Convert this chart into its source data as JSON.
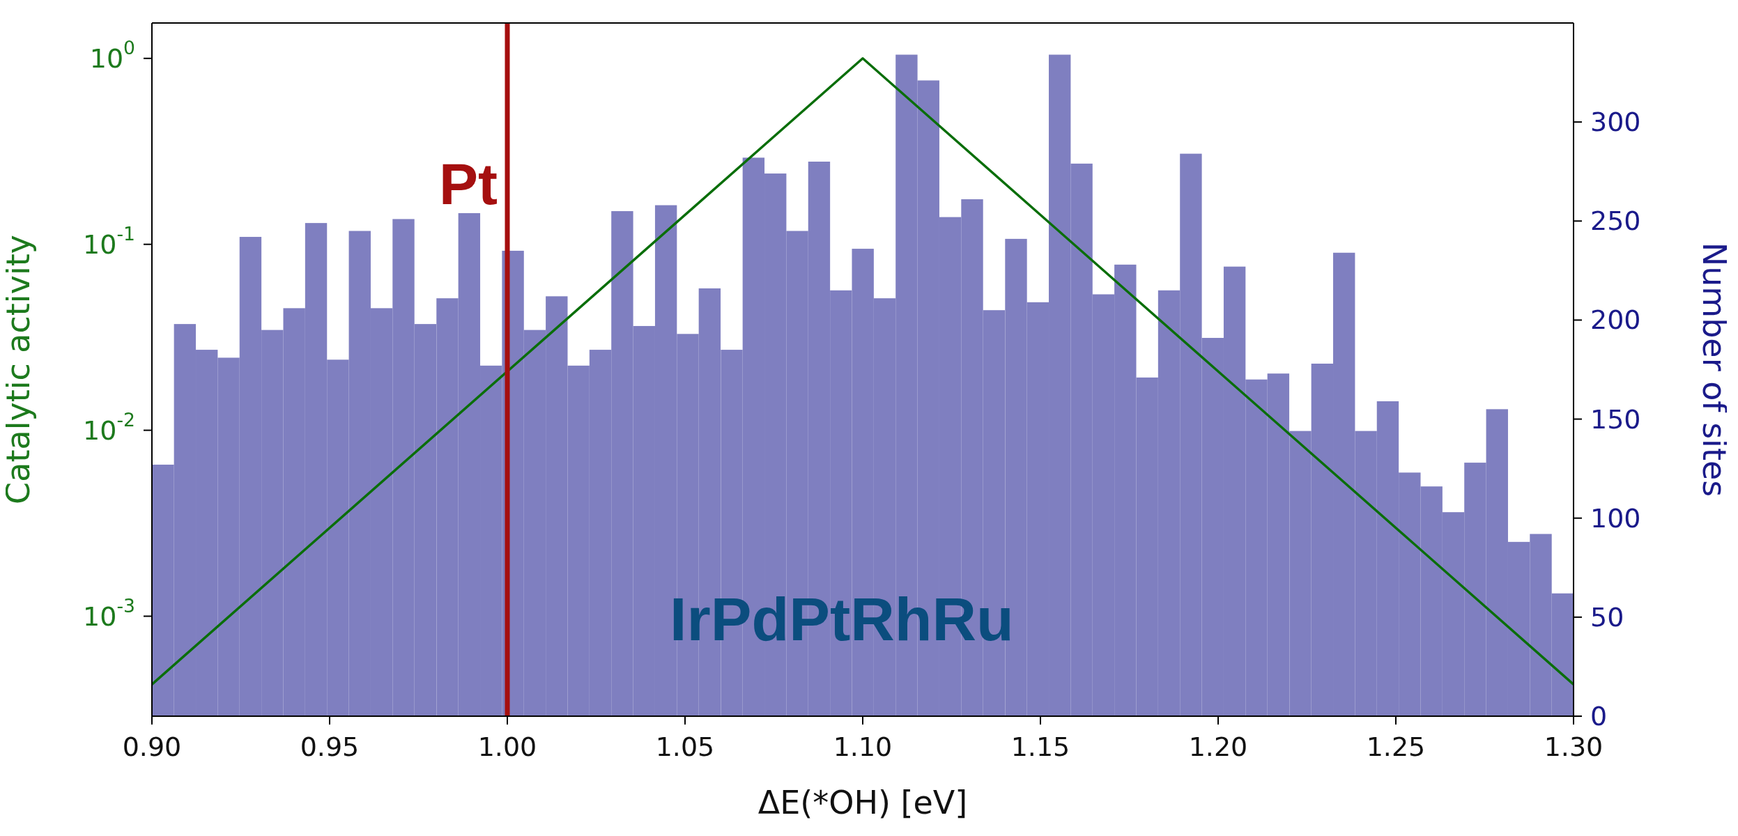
{
  "chart_data": {
    "type": "histogram",
    "xlabel": "ΔE(*OH) [eV]",
    "ylabel": "Catalytic activity",
    "y2label": "Number of sites",
    "log": "y",
    "xlim": [
      0.9,
      1.3
    ],
    "xticks": [
      {
        "value": 0.9,
        "label": "0.90"
      },
      {
        "value": 0.95,
        "label": "0.95"
      },
      {
        "value": 1.0,
        "label": "1.00"
      },
      {
        "value": 1.05,
        "label": "1.05"
      },
      {
        "value": 1.1,
        "label": "1.10"
      },
      {
        "value": 1.15,
        "label": "1.15"
      },
      {
        "value": 1.2,
        "label": "1.20"
      },
      {
        "value": 1.25,
        "label": "1.25"
      },
      {
        "value": 1.3,
        "label": "1.30"
      }
    ],
    "ylim": [
      0.00029,
      1.55
    ],
    "yticks": [
      {
        "value": 0.001,
        "label": "10$^{-3}$"
      },
      {
        "value": 0.01,
        "label": "10$^{-2}$"
      },
      {
        "value": 0.1,
        "label": "10$^{-1}$"
      },
      {
        "value": 1,
        "label": "10$^{0}$"
      }
    ],
    "y2lim": [
      0,
      350
    ],
    "y2ticks": [
      0,
      50,
      100,
      150,
      200,
      250,
      300
    ],
    "bins": [
      0.9,
      0.9062,
      0.9123,
      0.9185,
      0.9246,
      0.9308,
      0.9369,
      0.9431,
      0.9492,
      0.9554,
      0.9615,
      0.9677,
      0.9738,
      0.98,
      0.9862,
      0.9923,
      0.9985,
      1.0046,
      1.0108,
      1.0169,
      1.0231,
      1.0292,
      1.0354,
      1.0415,
      1.0477,
      1.0538,
      1.06,
      1.0662,
      1.0723,
      1.0785,
      1.0846,
      1.0908,
      1.0969,
      1.1031,
      1.1092,
      1.1154,
      1.1215,
      1.1277,
      1.1338,
      1.14,
      1.1462,
      1.1523,
      1.1585,
      1.1646,
      1.1708,
      1.1769,
      1.1831,
      1.1892,
      1.1954,
      1.2015,
      1.2077,
      1.2138,
      1.22,
      1.2262,
      1.2323,
      1.2385,
      1.2446,
      1.2508,
      1.2569,
      1.2631,
      1.2692,
      1.2754,
      1.2815,
      1.2877,
      1.2938,
      1.3
    ],
    "series": [
      {
        "axis": "y2",
        "color": "#7f7fc0",
        "values": [
          127,
          198,
          185,
          181,
          242,
          195,
          206,
          249,
          180,
          245,
          206,
          251,
          198,
          211,
          254,
          177,
          235,
          195,
          212,
          177,
          185,
          255,
          197,
          258,
          193,
          216,
          185,
          282,
          274,
          245,
          280,
          215,
          236,
          211,
          334,
          321,
          252,
          261,
          205,
          241,
          209,
          334,
          279,
          213,
          228,
          171,
          215,
          284,
          191,
          227,
          170,
          173,
          144,
          178,
          234,
          144,
          159,
          123,
          116,
          103,
          128,
          155,
          88,
          92,
          62
        ]
      },
      {
        "type": "line",
        "color": "#0a6e0a",
        "x": [
          0.9,
          1.1,
          1.3
        ],
        "values": [
          0.00043,
          1,
          0.00043
        ]
      }
    ],
    "ref_lines": [
      {
        "axis": "x",
        "value": 1.0,
        "label": "Pt",
        "color": "#a50f0f"
      }
    ],
    "annotations": [
      "IrPdPtRhRu"
    ]
  }
}
